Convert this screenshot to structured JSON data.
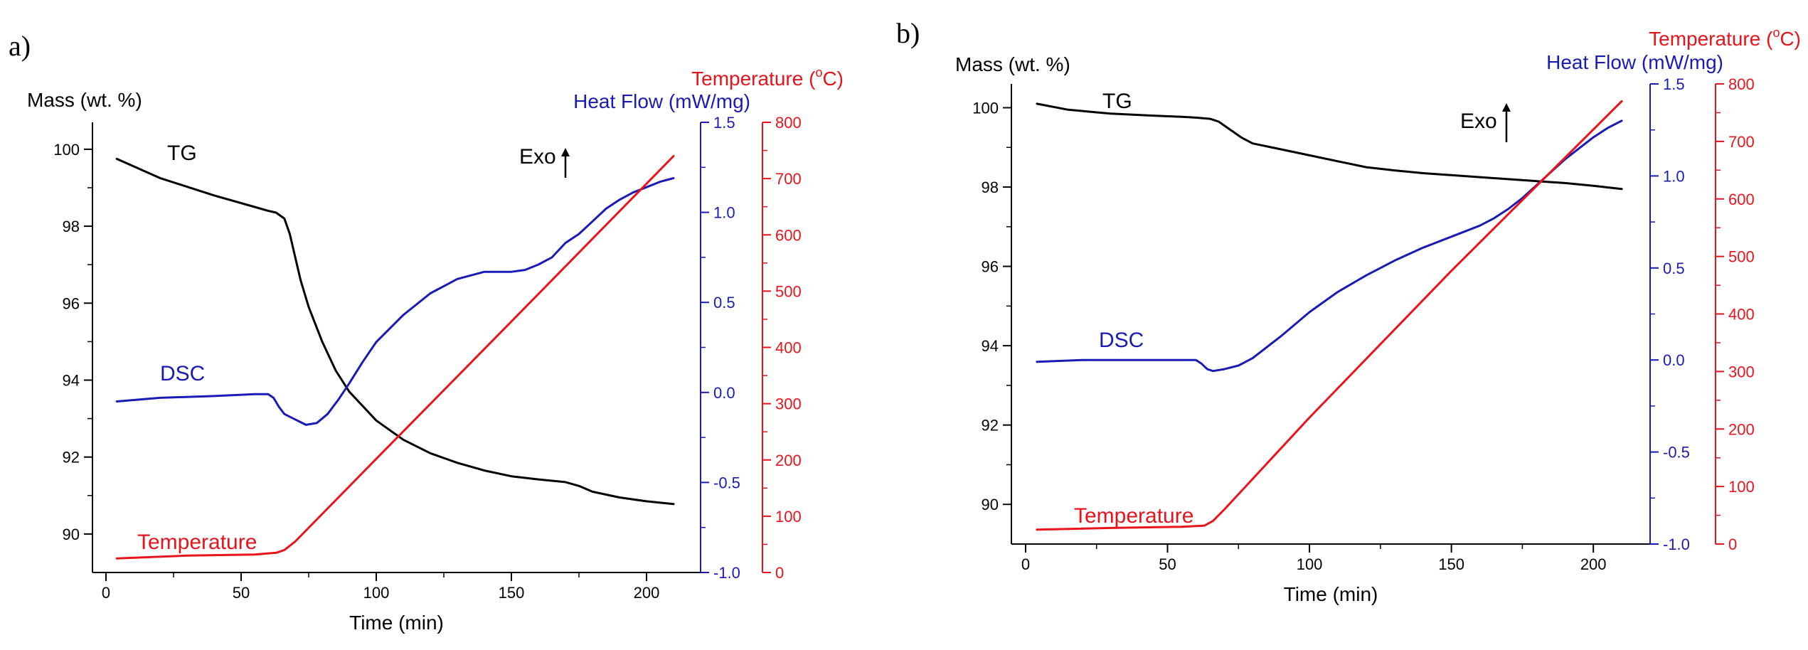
{
  "figure": {
    "panels": [
      "a)",
      "b)"
    ]
  },
  "colors": {
    "tg": "#000000",
    "dsc": "#1a1ab4",
    "temp": "#e8141c",
    "axis": "#000000"
  },
  "chart_data": [
    {
      "type": "line",
      "panel": "a)",
      "x": {
        "label": "Time (min)",
        "lim": [
          -5,
          220
        ],
        "ticks": [
          0,
          50,
          100,
          150,
          200
        ]
      },
      "y_mass": {
        "label": "Mass (wt. %)",
        "lim": [
          89,
          100.7
        ],
        "ticks": [
          90,
          92,
          94,
          96,
          98,
          100
        ],
        "labels": [
          "90",
          "92",
          "94",
          "96",
          "98",
          "100"
        ]
      },
      "y_heat": {
        "label": "Heat Flow (mW/mg)",
        "lim": [
          -1.0,
          1.5
        ],
        "ticks": [
          -1.0,
          -0.5,
          0.0,
          0.5,
          1.0,
          1.5
        ],
        "labels": [
          "-1.0",
          "-0.5",
          "0.0",
          "0.5",
          "1.0",
          "1.5"
        ]
      },
      "y_temp": {
        "label": "Temperature (",
        "label_unit": "C)",
        "label_sup": "o",
        "lim": [
          0,
          800
        ],
        "ticks": [
          0,
          100,
          200,
          300,
          400,
          500,
          600,
          700,
          800
        ],
        "labels": [
          "0",
          "100",
          "200",
          "300",
          "400",
          "500",
          "600",
          "700",
          "800"
        ]
      },
      "annotations": {
        "exo": "Exo"
      },
      "series": [
        {
          "name": "TG",
          "axis": "mass",
          "color": "tg",
          "x": [
            4,
            20,
            40,
            55,
            60,
            63,
            66,
            68,
            70,
            72,
            75,
            80,
            85,
            90,
            100,
            110,
            120,
            130,
            140,
            150,
            160,
            170,
            175,
            180,
            190,
            200,
            210
          ],
          "values": [
            99.75,
            99.25,
            98.8,
            98.5,
            98.4,
            98.35,
            98.2,
            97.8,
            97.2,
            96.6,
            95.9,
            95.0,
            94.25,
            93.7,
            92.95,
            92.45,
            92.1,
            91.85,
            91.65,
            91.5,
            91.42,
            91.35,
            91.25,
            91.1,
            90.95,
            90.85,
            90.78
          ]
        },
        {
          "name": "DSC",
          "axis": "heat",
          "color": "dsc",
          "x": [
            4,
            20,
            40,
            55,
            60,
            62,
            64,
            66,
            70,
            74,
            78,
            82,
            86,
            90,
            95,
            100,
            110,
            120,
            130,
            140,
            150,
            155,
            160,
            165,
            170,
            175,
            180,
            185,
            190,
            195,
            200,
            205,
            210
          ],
          "values": [
            -0.05,
            -0.03,
            -0.02,
            -0.01,
            -0.01,
            -0.03,
            -0.08,
            -0.12,
            -0.15,
            -0.18,
            -0.17,
            -0.12,
            -0.04,
            0.05,
            0.17,
            0.28,
            0.43,
            0.55,
            0.63,
            0.67,
            0.67,
            0.68,
            0.71,
            0.75,
            0.83,
            0.88,
            0.95,
            1.02,
            1.07,
            1.11,
            1.14,
            1.17,
            1.19
          ]
        },
        {
          "name": "Temperature",
          "axis": "temp",
          "color": "temp",
          "x": [
            4,
            30,
            55,
            63,
            66,
            70,
            100,
            150,
            210
          ],
          "values": [
            25,
            30,
            32,
            35,
            40,
            55,
            202,
            446,
            740
          ]
        }
      ]
    },
    {
      "type": "line",
      "panel": "b)",
      "x": {
        "label": "Time (min)",
        "lim": [
          -5,
          220
        ],
        "ticks": [
          0,
          50,
          100,
          150,
          200
        ]
      },
      "y_mass": {
        "label": "Mass (wt. %)",
        "lim": [
          89,
          100.6
        ],
        "ticks": [
          90,
          92,
          94,
          96,
          98,
          100
        ],
        "labels": [
          "90",
          "92",
          "94",
          "96",
          "98",
          "100"
        ]
      },
      "y_heat": {
        "label": "Heat Flow (mW/mg)",
        "lim": [
          -1.0,
          1.5
        ],
        "ticks": [
          -1.0,
          -0.5,
          0.0,
          0.5,
          1.0,
          1.5
        ],
        "labels": [
          "-1.0",
          "-0.5",
          "0.0",
          "0.5",
          "1.0",
          "1.5"
        ]
      },
      "y_temp": {
        "label": "Temperature (",
        "label_unit": "C)",
        "label_sup": "o",
        "lim": [
          0,
          800
        ],
        "ticks": [
          0,
          100,
          200,
          300,
          400,
          500,
          600,
          700,
          800
        ],
        "labels": [
          "0",
          "100",
          "200",
          "300",
          "400",
          "500",
          "600",
          "700",
          "800"
        ]
      },
      "annotations": {
        "exo": "Exo"
      },
      "series": [
        {
          "name": "TG",
          "axis": "mass",
          "color": "tg",
          "x": [
            4,
            15,
            30,
            45,
            55,
            60,
            65,
            68,
            72,
            76,
            80,
            90,
            100,
            110,
            120,
            130,
            140,
            150,
            160,
            170,
            180,
            190,
            200,
            210
          ],
          "values": [
            100.1,
            99.95,
            99.85,
            99.8,
            99.77,
            99.75,
            99.72,
            99.65,
            99.45,
            99.25,
            99.1,
            98.95,
            98.8,
            98.65,
            98.5,
            98.42,
            98.35,
            98.3,
            98.25,
            98.2,
            98.15,
            98.1,
            98.03,
            97.95
          ]
        },
        {
          "name": "DSC",
          "axis": "heat",
          "color": "dsc",
          "x": [
            4,
            20,
            40,
            55,
            60,
            62,
            64,
            66,
            70,
            75,
            80,
            90,
            100,
            110,
            120,
            130,
            140,
            150,
            160,
            165,
            170,
            175,
            180,
            185,
            190,
            195,
            200,
            205,
            210
          ],
          "values": [
            -0.01,
            0.0,
            0.0,
            0.0,
            0.0,
            -0.02,
            -0.05,
            -0.06,
            -0.05,
            -0.03,
            0.01,
            0.13,
            0.26,
            0.37,
            0.46,
            0.54,
            0.61,
            0.67,
            0.73,
            0.77,
            0.82,
            0.88,
            0.95,
            1.02,
            1.09,
            1.15,
            1.21,
            1.26,
            1.3
          ]
        },
        {
          "name": "Temperature",
          "axis": "temp",
          "color": "temp",
          "x": [
            4,
            30,
            55,
            63,
            66,
            70,
            100,
            150,
            210
          ],
          "values": [
            25,
            28,
            30,
            32,
            40,
            60,
            220,
            475,
            770
          ]
        }
      ]
    }
  ]
}
